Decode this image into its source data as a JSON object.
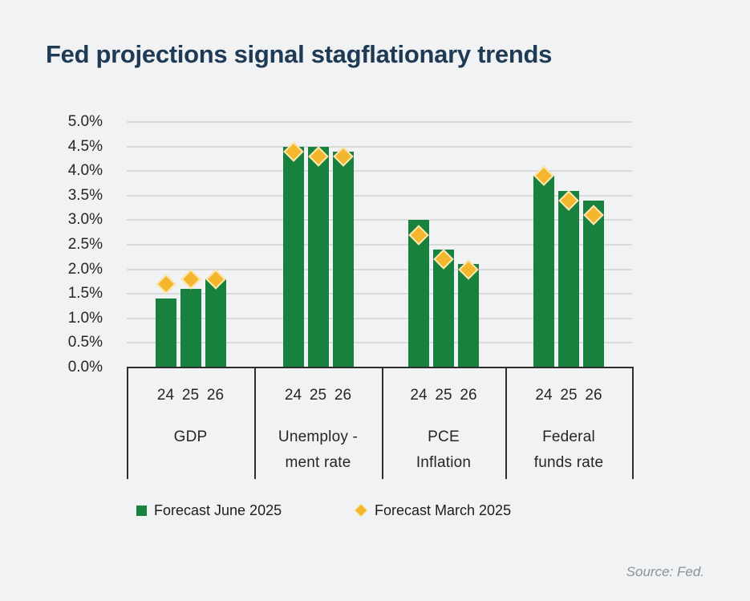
{
  "title": "Fed projections signal stagflationary trends",
  "source": "Source: Fed.",
  "colors": {
    "background": "#f0f2f4",
    "title_navy": "#1e3a54",
    "bar_green": "#17813D",
    "diamond_yellow": "#F4B62C",
    "diamond_outline": "#FAE7B2",
    "gridline": "#d8dadc",
    "axis_line": "#2e2e2e",
    "source_gray": "#8b9198"
  },
  "legend": {
    "june_label": "Forecast June 2025",
    "march_label": "Forecast March 2025"
  },
  "chart_data": {
    "type": "bar",
    "title": "Fed projections signal stagflationary trends",
    "ylim": [
      0,
      5
    ],
    "y_tick_step": 0.5,
    "y_tick_labels_top_to_bottom": [
      "5.0%",
      "4.5%",
      "4.0%",
      "3.5%",
      "3.0%",
      "2.5%",
      "2.0%",
      "1.5%",
      "1.0%",
      "0.5%",
      "0.0%"
    ],
    "grid": true,
    "legend_position": "bottom",
    "x_year_labels": [
      "24",
      "25",
      "26"
    ],
    "categories": [
      {
        "name": "GDP",
        "label_lines": [
          "GDP"
        ]
      },
      {
        "name": "Unemployment rate",
        "label_lines": [
          "Unemploy -",
          "ment rate"
        ]
      },
      {
        "name": "PCE Inflation",
        "label_lines": [
          "PCE",
          "Inflation"
        ]
      },
      {
        "name": "Federal funds rate",
        "label_lines": [
          "Federal",
          "funds rate"
        ]
      }
    ],
    "series": [
      {
        "name": "Forecast June 2025",
        "marker": "bar",
        "color": "#17813D",
        "values": [
          [
            1.4,
            1.6,
            1.8
          ],
          [
            4.5,
            4.5,
            4.4
          ],
          [
            3.0,
            2.4,
            2.1
          ],
          [
            3.9,
            3.6,
            3.4
          ]
        ]
      },
      {
        "name": "Forecast March 2025",
        "marker": "diamond",
        "color": "#F4B62C",
        "values": [
          [
            1.7,
            1.8,
            1.8
          ],
          [
            4.4,
            4.3,
            4.3
          ],
          [
            2.7,
            2.2,
            2.0
          ],
          [
            3.9,
            3.4,
            3.1
          ]
        ]
      }
    ],
    "source": "Source: Fed."
  }
}
